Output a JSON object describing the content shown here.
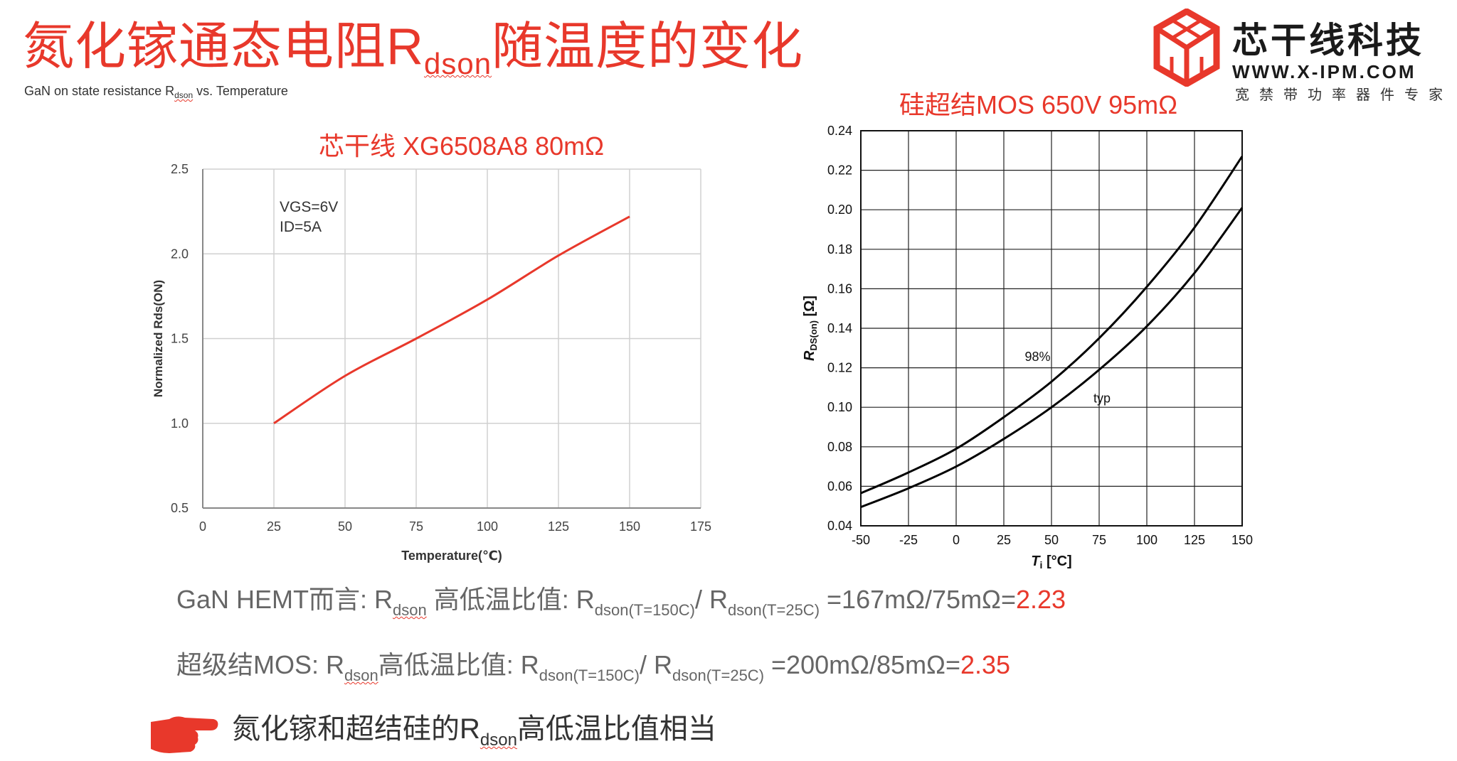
{
  "header": {
    "title_main": "氮化镓通态电阻R",
    "title_sub": "dson",
    "title_tail": "随温度的变化",
    "subtitle_main": "GaN on state resistance R",
    "subtitle_sub": "dson",
    "subtitle_tail": " vs. Temperature"
  },
  "logo": {
    "name": "芯干线科技",
    "url": "WWW.X-IPM.COM",
    "slogan": "宽禁带功率器件专家",
    "icon": "hexagon-cube-logo",
    "color": "#e8382b"
  },
  "colors": {
    "accent": "#e8382b",
    "text_gray": "#666666"
  },
  "chart_data": [
    {
      "type": "line",
      "title": "芯干线 XG6508A8 80mΩ",
      "xlabel": "Temperature(℃)",
      "ylabel": "Normalized Rds(ON)",
      "xlim": [
        0,
        175
      ],
      "ylim": [
        0.5,
        2.5
      ],
      "x_ticks": [
        "0",
        "25",
        "50",
        "75",
        "100",
        "125",
        "150",
        "175"
      ],
      "y_ticks": [
        "0.5",
        "1.0",
        "1.5",
        "2.0",
        "2.5"
      ],
      "grid": true,
      "annotation": [
        "VGS=6V",
        "ID=5A"
      ],
      "series": [
        {
          "color": "#e8382b",
          "x": [
            25,
            50,
            75,
            100,
            125,
            150
          ],
          "y": [
            1.0,
            1.28,
            1.5,
            1.73,
            1.99,
            2.22
          ]
        }
      ]
    },
    {
      "type": "line",
      "title": "硅超结MOS 650V 95mΩ",
      "xlabel": "T",
      "xlabel_sub": "j",
      "xlabel_unit": " [°C]",
      "ylabel": "R",
      "ylabel_sub": "DS(on)",
      "ylabel_unit": " [Ω]",
      "xlim": [
        -50,
        150
      ],
      "ylim": [
        0.04,
        0.24
      ],
      "x_ticks": [
        "-50",
        "-25",
        "0",
        "25",
        "50",
        "75",
        "100",
        "125",
        "150"
      ],
      "y_ticks": [
        "0.04",
        "0.06",
        "0.08",
        "0.10",
        "0.12",
        "0.14",
        "0.16",
        "0.18",
        "0.20",
        "0.22",
        "0.24"
      ],
      "grid": true,
      "series": [
        {
          "name": "98%",
          "color": "#000000",
          "x": [
            -50,
            -25,
            0,
            25,
            50,
            75,
            100,
            125,
            150
          ],
          "y": [
            0.0565,
            0.067,
            0.079,
            0.095,
            0.113,
            0.135,
            0.161,
            0.191,
            0.227
          ]
        },
        {
          "name": "typ",
          "color": "#000000",
          "x": [
            -50,
            -25,
            0,
            25,
            50,
            75,
            100,
            125,
            150
          ],
          "y": [
            0.0495,
            0.059,
            0.07,
            0.084,
            0.1,
            0.119,
            0.141,
            0.168,
            0.201
          ]
        }
      ]
    }
  ],
  "notes": {
    "gan": {
      "lead": "GaN HEMT而言: R",
      "s1": "dson",
      "mid": " 高低温比值: R",
      "s2": "dson(T=150C)",
      "slash": "/ R",
      "s3": "dson(T=25C)",
      "eq": " =167mΩ/75mΩ=",
      "result": "2.23"
    },
    "sj": {
      "lead": "超级结MOS: R",
      "s1": "dson",
      "mid": "高低温比值: R",
      "s2": "dson(T=150C)",
      "slash": "/ R",
      "s3": "dson(T=25C)",
      "eq": " =200mΩ/85mΩ=",
      "result": "2.35"
    },
    "conclusion": {
      "lead": "氮化镓和超结硅的R",
      "sub": "dson",
      "tail": "高低温比值相当",
      "icon": "pointing-hand-icon"
    }
  }
}
